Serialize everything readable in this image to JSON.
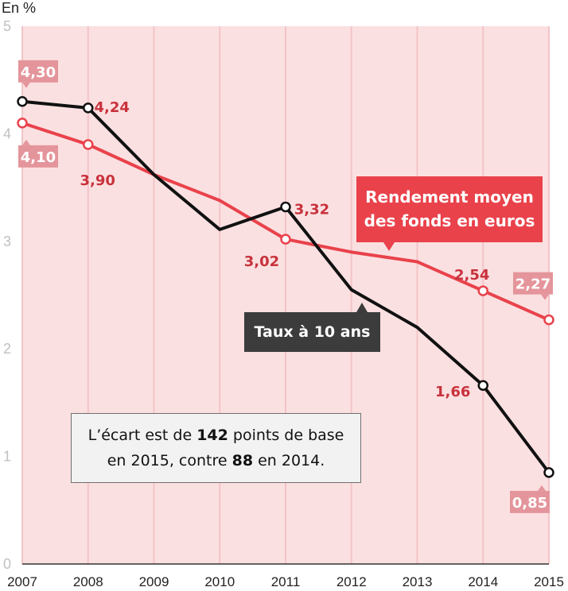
{
  "unit_label": "En %",
  "callouts": {
    "red_line1": "Rendement moyen",
    "red_line2": "des fonds en euros",
    "black": "Taux à 10 ans"
  },
  "note": {
    "part1": "L’écart est de ",
    "bold1": "142",
    "part2": " points de base",
    "part3": "en 2015, contre ",
    "bold2": "88",
    "part4": " en 2014."
  },
  "colors": {
    "background": "#fbe0e1",
    "grid": "#f3c4c7",
    "red_series": "#e9424b",
    "black_series": "#111111",
    "red_label": "#c8323c",
    "badge": "#e4959b"
  },
  "chart_data": {
    "type": "line",
    "x": [
      2007,
      2008,
      2009,
      2010,
      2011,
      2012,
      2013,
      2014,
      2015
    ],
    "ylim": [
      0,
      5
    ],
    "yticks": [
      "0",
      "1",
      "2",
      "3",
      "4",
      "5"
    ],
    "grid": "vertical",
    "series": [
      {
        "name": "Rendement moyen des fonds en euros",
        "color": "#e9424b",
        "values": [
          4.1,
          3.9,
          3.62,
          3.38,
          3.02,
          2.9,
          2.81,
          2.54,
          2.27
        ],
        "labels": [
          "4,10",
          "3,90",
          "",
          "",
          "3,02",
          "",
          "",
          "2,54",
          "2,27"
        ]
      },
      {
        "name": "Taux à 10 ans",
        "color": "#111111",
        "values": [
          4.3,
          4.24,
          3.62,
          3.11,
          3.32,
          2.55,
          2.2,
          1.66,
          0.85
        ],
        "labels": [
          "4,30",
          "4,24",
          "",
          "",
          "3,32",
          "",
          "",
          "1,66",
          "0,85"
        ]
      }
    ]
  }
}
